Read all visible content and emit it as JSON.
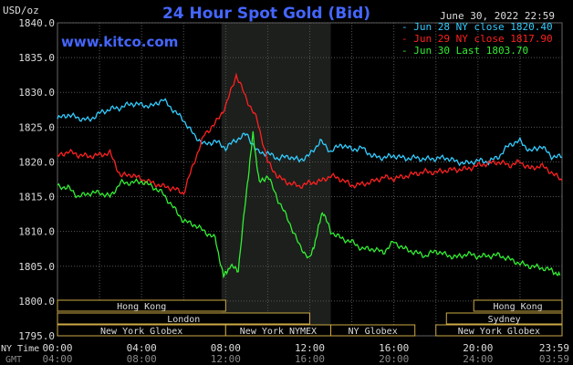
{
  "chart_data": {
    "type": "line",
    "title": "24 Hour Spot Gold (Bid)",
    "watermark": "www.kitco.com",
    "ylabel": "USD/oz",
    "timestamp": "June 30, 2022 22:59",
    "ylim": [
      1795,
      1840
    ],
    "y_ticks": [
      "1840.0",
      "1835.0",
      "1830.0",
      "1825.0",
      "1820.0",
      "1815.0",
      "1810.0",
      "1805.0",
      "1800.0",
      "1795.0"
    ],
    "x_ticks_ny": [
      "00:00",
      "04:00",
      "08:00",
      "12:00",
      "16:00",
      "20:00",
      "23:59"
    ],
    "x_ticks_gmt": [
      "04:00",
      "08:00",
      "12:00",
      "16:00",
      "20:00",
      "24:00",
      "03:59"
    ],
    "x_label_ny": "NY Time",
    "x_label_gmt": "GMT",
    "highlight_hours": [
      7.8,
      13.0
    ],
    "grid": true,
    "legend_position": "top-right",
    "series": [
      {
        "name": "Jun 28 NY close 1820.40",
        "color": "#33ccff",
        "hours": [
          0,
          0.5,
          1,
          1.5,
          2,
          2.5,
          3,
          3.5,
          4,
          4.5,
          5,
          5.5,
          6,
          6.5,
          7,
          7.5,
          8,
          8.5,
          9,
          9.5,
          10,
          10.5,
          11,
          11.5,
          12,
          12.5,
          13,
          13.5,
          14,
          14.5,
          15,
          15.5,
          16,
          16.5,
          17,
          17.5,
          18,
          18.5,
          19,
          19.5,
          20,
          20.5,
          21,
          21.5,
          22,
          22.5,
          23,
          23.5,
          24
        ],
        "values": [
          1826.2,
          1826.8,
          1826.3,
          1826.0,
          1827.0,
          1827.6,
          1827.8,
          1828.4,
          1828.2,
          1828.0,
          1829.0,
          1827.5,
          1826.0,
          1823.8,
          1822.5,
          1823.0,
          1822.0,
          1823.2,
          1824.0,
          1821.5,
          1821.2,
          1820.5,
          1820.8,
          1820.2,
          1821.0,
          1823.0,
          1821.5,
          1822.5,
          1821.8,
          1822.0,
          1820.8,
          1820.6,
          1820.9,
          1820.5,
          1820.6,
          1820.4,
          1820.5,
          1820.6,
          1820.0,
          1819.8,
          1820.2,
          1820.0,
          1820.8,
          1822.5,
          1823.0,
          1821.5,
          1822.3,
          1820.8,
          1820.7
        ]
      },
      {
        "name": "Jun 29 NY close 1817.90",
        "color": "#ff2020",
        "hours": [
          0,
          0.5,
          1,
          1.5,
          2,
          2.5,
          3,
          3.5,
          4,
          4.5,
          5,
          5.5,
          6,
          6.5,
          7,
          7.5,
          8,
          8.5,
          9,
          9.5,
          10,
          10.5,
          11,
          11.5,
          12,
          12.5,
          13,
          13.5,
          14,
          14.5,
          15,
          15.5,
          16,
          16.5,
          17,
          17.5,
          18,
          18.5,
          19,
          19.5,
          20,
          20.5,
          21,
          21.5,
          22,
          22.5,
          23,
          23.5,
          24
        ],
        "values": [
          1820.8,
          1821.5,
          1821.0,
          1820.8,
          1821.0,
          1821.3,
          1818.0,
          1818.2,
          1817.5,
          1817.0,
          1816.5,
          1816.2,
          1815.5,
          1820.0,
          1824.0,
          1825.5,
          1828.0,
          1832.5,
          1829.0,
          1826.0,
          1820.0,
          1817.8,
          1817.0,
          1816.5,
          1817.0,
          1817.2,
          1818.0,
          1817.5,
          1816.6,
          1816.8,
          1817.2,
          1817.8,
          1817.6,
          1817.9,
          1818.3,
          1818.6,
          1818.5,
          1818.8,
          1818.9,
          1819.0,
          1819.5,
          1819.8,
          1820.0,
          1819.5,
          1820.0,
          1819.0,
          1819.5,
          1818.5,
          1817.3
        ]
      },
      {
        "name": "Jun 30 Last 1803.70",
        "color": "#33ee33",
        "hours": [
          0,
          0.5,
          1,
          1.5,
          2,
          2.5,
          3,
          3.5,
          4,
          4.5,
          5,
          5.5,
          6,
          6.5,
          7,
          7.5,
          7.9,
          8.2,
          8.6,
          9,
          9.3,
          9.6,
          10,
          10.5,
          11,
          11.5,
          12,
          12.3,
          12.6,
          13,
          13.5,
          14,
          14.5,
          15,
          15.5,
          16,
          16.5,
          17,
          17.5,
          18,
          18.5,
          19,
          19.5,
          20,
          20.5,
          21,
          21.5,
          22,
          22.5,
          23,
          23.5,
          23.9
        ],
        "values": [
          1816.5,
          1816.3,
          1815.0,
          1815.5,
          1815.6,
          1815.0,
          1817.0,
          1817.0,
          1817.2,
          1816.5,
          1815.5,
          1813.5,
          1811.5,
          1811.0,
          1810.0,
          1809.0,
          1803.5,
          1805.0,
          1804.5,
          1816.0,
          1824.0,
          1817.0,
          1818.0,
          1814.5,
          1811.5,
          1808.0,
          1806.0,
          1809.0,
          1813.0,
          1810.0,
          1809.0,
          1808.5,
          1807.5,
          1807.5,
          1807.0,
          1808.5,
          1807.5,
          1807.0,
          1806.5,
          1807.2,
          1806.6,
          1806.3,
          1806.8,
          1806.4,
          1806.5,
          1806.6,
          1806.0,
          1805.4,
          1805.0,
          1804.8,
          1804.4,
          1803.7
        ]
      }
    ],
    "sessions": [
      {
        "label": "Hong Kong",
        "row": 0,
        "start": 0,
        "end": 8
      },
      {
        "label": "Hong Kong",
        "row": 0,
        "start": 19.8,
        "end": 24
      },
      {
        "label": "London",
        "row": 1,
        "start": 0,
        "end": 12
      },
      {
        "label": "Sydney",
        "row": 1,
        "start": 18.5,
        "end": 24
      },
      {
        "label": "New York Globex",
        "row": 2,
        "start": 0,
        "end": 8
      },
      {
        "label": "New York NYMEX",
        "row": 2,
        "start": 8,
        "end": 13
      },
      {
        "label": "NY Globex",
        "row": 2,
        "start": 13,
        "end": 17
      },
      {
        "label": "New York Globex",
        "row": 2,
        "start": 18,
        "end": 24
      }
    ]
  }
}
